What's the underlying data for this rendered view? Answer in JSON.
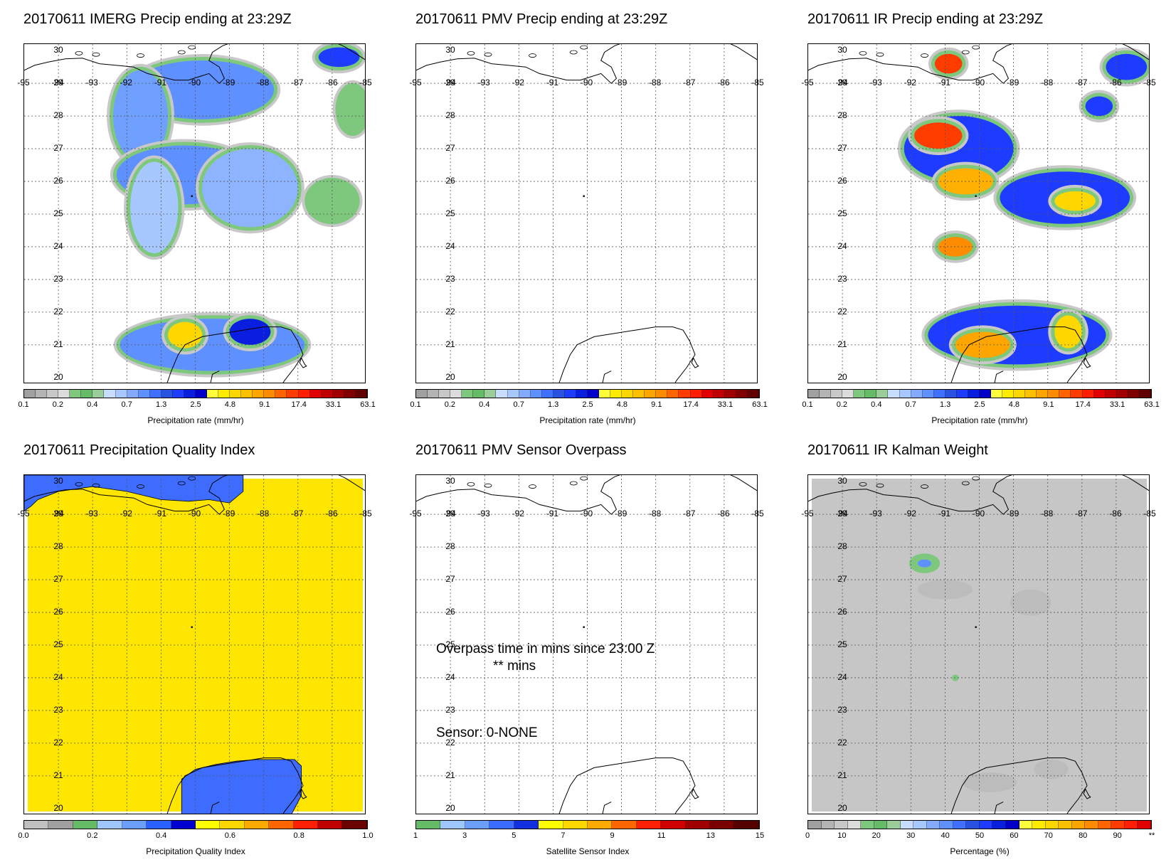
{
  "lat_labels": [
    "30",
    "29",
    "28",
    "27",
    "26",
    "25",
    "24",
    "23",
    "22",
    "21",
    "20"
  ],
  "lon_labels": [
    "-95",
    "-94",
    "-93",
    "-92",
    "-91",
    "-90",
    "-89",
    "-88",
    "-87",
    "-86",
    "-85"
  ],
  "panels": [
    {
      "title": "20170611 IMERG Precip ending at 23:29Z",
      "colorbar_label": "Precipitation rate (mm/hr)",
      "ticks": [
        "0.1",
        "0.2",
        "0.4",
        "0.7",
        "1.3",
        "2.5",
        "4.8",
        "9.1",
        "17.4",
        "33.1",
        "63.1"
      ],
      "colors": [
        "#a0a0a0",
        "#b4b4b4",
        "#c8c8c8",
        "#dcdcdc",
        "#7ec87e",
        "#66bb66",
        "#9acd9a",
        "#c8dcff",
        "#a6c8ff",
        "#84aaff",
        "#5f90ff",
        "#4070ff",
        "#2a52e0",
        "#1e3cff",
        "#0a1ee0",
        "#0000c8",
        "#ffff3c",
        "#ffeb00",
        "#ffd700",
        "#ffc000",
        "#ffa500",
        "#ff8c00",
        "#ff6400",
        "#ff3c00",
        "#ff1e00",
        "#e00000",
        "#c00000",
        "#a00000",
        "#800000",
        "#600000"
      ],
      "features": [
        {
          "type": "blob",
          "lon": -89.8,
          "lat": 28.8,
          "rx": 2.1,
          "ry": 0.9,
          "fill": "#5f90ff"
        },
        {
          "type": "blob",
          "lon": -91.6,
          "lat": 28.0,
          "rx": 0.8,
          "ry": 1.4,
          "fill": "#6fa0ff"
        },
        {
          "type": "blob",
          "lon": -90.3,
          "lat": 26.2,
          "rx": 2.0,
          "ry": 0.9,
          "fill": "#5f90ff"
        },
        {
          "type": "blob",
          "lon": -88.4,
          "lat": 25.8,
          "rx": 1.4,
          "ry": 1.2,
          "fill": "#8fb4ff"
        },
        {
          "type": "blob",
          "lon": -91.2,
          "lat": 25.2,
          "rx": 0.7,
          "ry": 1.4,
          "fill": "#a6c8ff"
        },
        {
          "type": "blob",
          "lon": -86.0,
          "lat": 25.4,
          "rx": 0.7,
          "ry": 0.6,
          "fill": "#7ec87e"
        },
        {
          "type": "blob",
          "lon": -89.5,
          "lat": 21.0,
          "rx": 2.7,
          "ry": 0.8,
          "fill": "#5f90ff"
        },
        {
          "type": "blob",
          "lon": -88.4,
          "lat": 21.4,
          "rx": 0.6,
          "ry": 0.4,
          "fill": "#0a1ee0"
        },
        {
          "type": "blob",
          "lon": -90.3,
          "lat": 21.3,
          "rx": 0.5,
          "ry": 0.4,
          "fill": "#ffd700"
        },
        {
          "type": "blob",
          "lon": -85.4,
          "lat": 28.2,
          "rx": 0.4,
          "ry": 0.7,
          "fill": "#7ec87e"
        },
        {
          "type": "blob",
          "lon": -85.8,
          "lat": 29.8,
          "rx": 0.6,
          "ry": 0.3,
          "fill": "#1e3cff"
        }
      ]
    },
    {
      "title": "20170611 PMV Precip ending at 23:29Z",
      "colorbar_label": "Precipitation rate (mm/hr)",
      "ticks": [
        "0.1",
        "0.2",
        "0.4",
        "0.7",
        "1.3",
        "2.5",
        "4.8",
        "9.1",
        "17.4",
        "33.1",
        "63.1"
      ],
      "colors": [
        "#a0a0a0",
        "#b4b4b4",
        "#c8c8c8",
        "#dcdcdc",
        "#7ec87e",
        "#66bb66",
        "#9acd9a",
        "#c8dcff",
        "#a6c8ff",
        "#84aaff",
        "#5f90ff",
        "#4070ff",
        "#2a52e0",
        "#1e3cff",
        "#0a1ee0",
        "#0000c8",
        "#ffff3c",
        "#ffeb00",
        "#ffd700",
        "#ffc000",
        "#ffa500",
        "#ff8c00",
        "#ff6400",
        "#ff3c00",
        "#ff1e00",
        "#e00000",
        "#c00000",
        "#a00000",
        "#800000",
        "#600000"
      ],
      "features": []
    },
    {
      "title": "20170611 IR Precip ending at 23:29Z",
      "colorbar_label": "Precipitation rate (mm/hr)",
      "ticks": [
        "0.1",
        "0.2",
        "0.4",
        "0.7",
        "1.3",
        "2.5",
        "4.8",
        "9.1",
        "17.4",
        "33.1",
        "63.1"
      ],
      "colors": [
        "#a0a0a0",
        "#b4b4b4",
        "#c8c8c8",
        "#dcdcdc",
        "#7ec87e",
        "#66bb66",
        "#9acd9a",
        "#c8dcff",
        "#a6c8ff",
        "#84aaff",
        "#5f90ff",
        "#4070ff",
        "#2a52e0",
        "#1e3cff",
        "#0a1ee0",
        "#0000c8",
        "#ffff3c",
        "#ffeb00",
        "#ffd700",
        "#ffc000",
        "#ffa500",
        "#ff8c00",
        "#ff6400",
        "#ff3c00",
        "#ff1e00",
        "#e00000",
        "#c00000",
        "#a00000",
        "#800000",
        "#600000"
      ],
      "features": [
        {
          "type": "blob",
          "lon": -90.6,
          "lat": 27.0,
          "rx": 1.6,
          "ry": 1.0,
          "fill": "#1e3cff"
        },
        {
          "type": "blob",
          "lon": -91.2,
          "lat": 27.4,
          "rx": 0.7,
          "ry": 0.4,
          "fill": "#ff3c00"
        },
        {
          "type": "blob",
          "lon": -90.4,
          "lat": 26.0,
          "rx": 0.8,
          "ry": 0.4,
          "fill": "#ffb000"
        },
        {
          "type": "blob",
          "lon": -87.5,
          "lat": 25.5,
          "rx": 1.9,
          "ry": 0.8,
          "fill": "#1e3cff"
        },
        {
          "type": "blob",
          "lon": -87.2,
          "lat": 25.4,
          "rx": 0.6,
          "ry": 0.3,
          "fill": "#ffd700"
        },
        {
          "type": "blob",
          "lon": -90.7,
          "lat": 24.0,
          "rx": 0.5,
          "ry": 0.3,
          "fill": "#ff8c00"
        },
        {
          "type": "blob",
          "lon": -88.9,
          "lat": 21.3,
          "rx": 2.6,
          "ry": 0.9,
          "fill": "#1e3cff"
        },
        {
          "type": "blob",
          "lon": -89.9,
          "lat": 21.0,
          "rx": 0.8,
          "ry": 0.4,
          "fill": "#ffa500"
        },
        {
          "type": "blob",
          "lon": -87.4,
          "lat": 21.4,
          "rx": 0.4,
          "ry": 0.5,
          "fill": "#ffd700"
        },
        {
          "type": "blob",
          "lon": -90.9,
          "lat": 29.6,
          "rx": 0.4,
          "ry": 0.3,
          "fill": "#ff3c00"
        },
        {
          "type": "blob",
          "lon": -85.7,
          "lat": 29.5,
          "rx": 0.6,
          "ry": 0.4,
          "fill": "#1e3cff"
        },
        {
          "type": "blob",
          "lon": -86.5,
          "lat": 28.3,
          "rx": 0.4,
          "ry": 0.3,
          "fill": "#1e3cff"
        }
      ]
    },
    {
      "title": "20170611 Precipitation Quality Index",
      "colorbar_label": "Precipitation Quality Index",
      "ticks": [
        "0.0",
        "0.2",
        "0.4",
        "0.6",
        "0.8",
        "1.0"
      ],
      "colors": [
        "#c0c0c0",
        "#a0a0a0",
        "#66bb66",
        "#9fc7ff",
        "#6a9eff",
        "#2a60ff",
        "#0000d0",
        "#ffff00",
        "#ffd700",
        "#ffaa00",
        "#ff6600",
        "#ff2000",
        "#c00000",
        "#6b0000"
      ],
      "features": []
    },
    {
      "title": "20170611 PMV Sensor Overpass",
      "colorbar_label": "Satellite Sensor Index",
      "ticks": [
        "1",
        "3",
        "5",
        "7",
        "9",
        "11",
        "13",
        "15"
      ],
      "colors": [
        "#66bb66",
        "#9fc7ff",
        "#6a9eff",
        "#3a6cff",
        "#1230e0",
        "#ffff00",
        "#ffd700",
        "#ffaa00",
        "#ff6600",
        "#ff2000",
        "#d00000",
        "#a00000",
        "#7a0000",
        "#550000"
      ],
      "overpass_line1": "Overpass time in mins since 23:00 Z",
      "overpass_line2": "** mins",
      "sensor_text": "Sensor:   0-NONE",
      "features": []
    },
    {
      "title": "20170611 IR Kalman Weight",
      "colorbar_label": "Percentage (%)",
      "ticks": [
        "0",
        "10",
        "20",
        "30",
        "40",
        "50",
        "60",
        "70",
        "80",
        "90",
        "**"
      ],
      "colors": [
        "#a0a0a0",
        "#b4b4b4",
        "#c8c8c8",
        "#dcdcdc",
        "#7ec87e",
        "#66bb66",
        "#9acd9a",
        "#c8dcff",
        "#a6c8ff",
        "#84aaff",
        "#5f90ff",
        "#4070ff",
        "#2a52e0",
        "#1e3cff",
        "#0a1ee0",
        "#0000c8",
        "#ffff3c",
        "#ffeb00",
        "#ffd700",
        "#ffc000",
        "#ffa500",
        "#ff8c00",
        "#ff6400",
        "#ff3c00",
        "#ff1e00",
        "#e00000"
      ],
      "features": [
        {
          "type": "blob",
          "lon": -91.6,
          "lat": 27.5,
          "rx": 0.45,
          "ry": 0.3,
          "fill": "#7ec87e"
        },
        {
          "type": "blob",
          "lon": -91.6,
          "lat": 27.5,
          "rx": 0.2,
          "ry": 0.12,
          "fill": "#5f90ff"
        },
        {
          "type": "blob",
          "lon": -90.7,
          "lat": 24.0,
          "rx": 0.1,
          "ry": 0.1,
          "fill": "#7ec87e"
        }
      ]
    }
  ]
}
